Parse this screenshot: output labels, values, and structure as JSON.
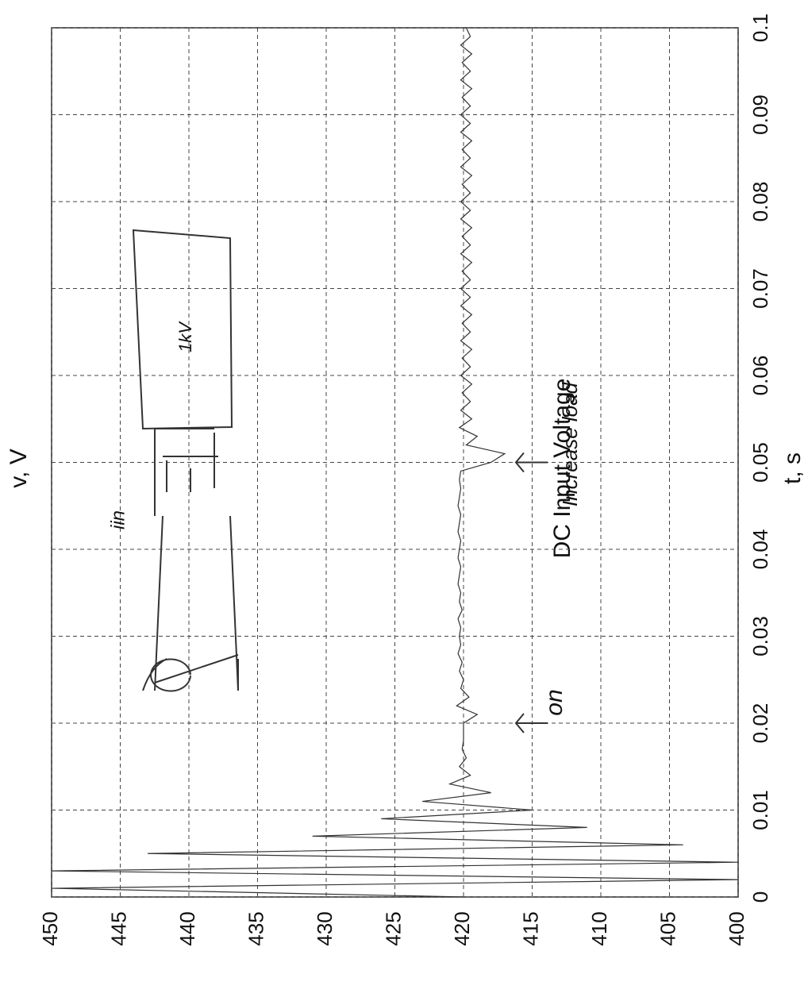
{
  "chart_data": {
    "type": "line",
    "title": "DC Input Voltage",
    "x_label": "t, s",
    "y_label": "v, V",
    "x": [
      0,
      0.001,
      0.002,
      0.003,
      0.004,
      0.005,
      0.006,
      0.007,
      0.008,
      0.009,
      0.01,
      0.011,
      0.012,
      0.013,
      0.014,
      0.015,
      0.016,
      0.017,
      0.018,
      0.019,
      0.02,
      0.021,
      0.022,
      0.023,
      0.024,
      0.025,
      0.026,
      0.027,
      0.028,
      0.029,
      0.03,
      0.031,
      0.032,
      0.033,
      0.034,
      0.035,
      0.036,
      0.037,
      0.038,
      0.039,
      0.04,
      0.041,
      0.042,
      0.043,
      0.044,
      0.045,
      0.046,
      0.047,
      0.048,
      0.049,
      0.05,
      0.051,
      0.052,
      0.053,
      0.054,
      0.055,
      0.056,
      0.057,
      0.058,
      0.059,
      0.06,
      0.061,
      0.062,
      0.063,
      0.064,
      0.065,
      0.066,
      0.067,
      0.068,
      0.069,
      0.07,
      0.071,
      0.072,
      0.073,
      0.074,
      0.075,
      0.076,
      0.077,
      0.078,
      0.079,
      0.08,
      0.081,
      0.082,
      0.083,
      0.084,
      0.085,
      0.086,
      0.087,
      0.088,
      0.089,
      0.09,
      0.091,
      0.092,
      0.093,
      0.094,
      0.095,
      0.096,
      0.097,
      0.098,
      0.099,
      0.1
    ],
    "values": [
      420,
      450,
      400,
      450,
      400,
      443,
      404,
      431,
      411,
      426,
      415,
      423,
      418,
      421,
      419.5,
      420.3,
      419.8,
      420.1,
      420,
      420,
      420,
      419,
      420.5,
      419.6,
      420.2,
      420,
      420.3,
      420.1,
      420.4,
      420.2,
      420.3,
      420.2,
      420.4,
      420.1,
      420.3,
      420.2,
      420.4,
      420.3,
      420.2,
      420.4,
      420.3,
      420.2,
      420.4,
      420.3,
      420.2,
      420.4,
      420.3,
      420.2,
      420.3,
      420.2,
      418,
      417,
      419.8,
      419,
      420.3,
      419.4,
      420.2,
      419.5,
      420.1,
      419.4,
      420.2,
      419.5,
      420.1,
      419.4,
      420.2,
      419.5,
      420.1,
      419.4,
      420.2,
      419.5,
      420.2,
      419.5,
      420.1,
      419.4,
      420.2,
      419.5,
      420.1,
      419.4,
      420.2,
      419.5,
      420.2,
      419.5,
      420.1,
      419.4,
      420.2,
      419.5,
      420.1,
      419.4,
      420.2,
      419.5,
      420.2,
      419.5,
      420.1,
      419.4,
      420.2,
      419.5,
      420.1,
      419.4,
      420.2,
      419.5,
      419.8
    ],
    "color": "#333333",
    "xlim": [
      0,
      0.1
    ],
    "xticks": [
      0,
      0.01,
      0.02,
      0.03,
      0.04,
      0.05,
      0.06,
      0.07,
      0.08,
      0.09,
      0.1
    ],
    "ylim": [
      400,
      450
    ],
    "yticks": [
      400,
      405,
      410,
      415,
      420,
      425,
      430,
      435,
      440,
      445,
      450
    ],
    "grid": true,
    "annotations": [
      "on",
      "Increase load",
      "1kV",
      "iin"
    ]
  }
}
